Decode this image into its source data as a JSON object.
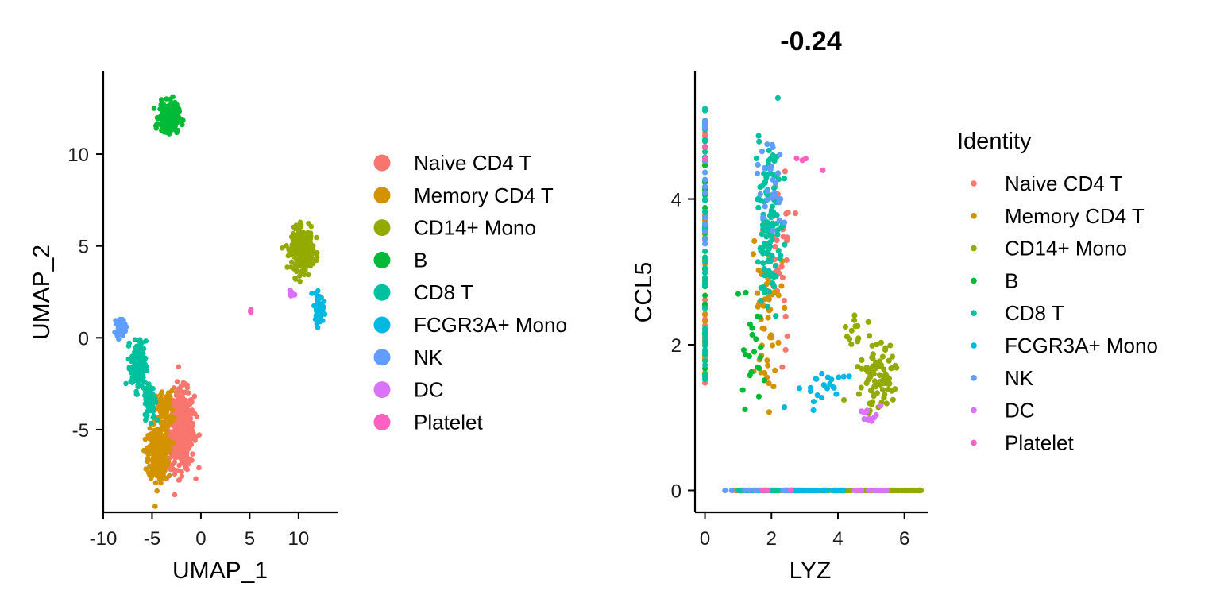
{
  "chart_data": [
    {
      "type": "scatter",
      "title": "",
      "xlabel": "UMAP_1",
      "ylabel": "UMAP_2",
      "xlim": [
        -10,
        14
      ],
      "ylim": [
        -9.5,
        14.5
      ],
      "x_ticks": [
        -10,
        -5,
        0,
        5,
        10
      ],
      "y_ticks": [
        -5,
        0,
        5,
        10
      ],
      "x_tick_labels": [
        "-10",
        "-5",
        "0",
        "5",
        "10"
      ],
      "y_tick_labels": [
        "-5",
        "0",
        "5",
        "10"
      ],
      "grid": false,
      "legend_position": "right",
      "clusters": [
        {
          "name": "Naive CD4 T",
          "center": [
            -2.0,
            -5.0
          ],
          "spread": [
            1.2,
            1.9
          ],
          "n": 520
        },
        {
          "name": "Memory CD4 T",
          "center": [
            -4.4,
            -6.3
          ],
          "spread": [
            0.9,
            1.3
          ],
          "n": 340
        },
        {
          "name": "Memory CD4 T",
          "center": [
            -3.7,
            -3.9
          ],
          "spread": [
            0.8,
            0.9
          ],
          "n": 90
        },
        {
          "name": "CD14+ Mono",
          "center": [
            10.4,
            4.8
          ],
          "spread": [
            1.0,
            1.0
          ],
          "n": 340
        },
        {
          "name": "B",
          "center": [
            -3.3,
            12.0
          ],
          "spread": [
            0.9,
            0.7
          ],
          "n": 260
        },
        {
          "name": "CD8 T",
          "center": [
            -6.4,
            -1.5
          ],
          "spread": [
            0.7,
            1.2
          ],
          "n": 160
        },
        {
          "name": "CD8 T",
          "center": [
            -5.2,
            -3.4
          ],
          "spread": [
            0.5,
            0.9
          ],
          "n": 90
        },
        {
          "name": "FCGR3A+ Mono",
          "center": [
            12.1,
            1.6
          ],
          "spread": [
            0.4,
            0.7
          ],
          "n": 110
        },
        {
          "name": "NK",
          "center": [
            -8.2,
            0.6
          ],
          "spread": [
            0.4,
            0.4
          ],
          "n": 90
        },
        {
          "name": "DC",
          "center": [
            9.4,
            2.4
          ],
          "spread": [
            0.3,
            0.25
          ],
          "n": 12
        },
        {
          "name": "Platelet",
          "center": [
            5.1,
            1.45
          ],
          "spread": [
            0.05,
            0.07
          ],
          "n": 6
        }
      ]
    },
    {
      "type": "scatter",
      "title": "-0.24",
      "xlabel": "LYZ",
      "ylabel": "CCL5",
      "xlim": [
        -0.3,
        6.7
      ],
      "ylim": [
        -0.3,
        5.75
      ],
      "x_ticks": [
        0,
        2,
        4,
        6
      ],
      "y_ticks": [
        0,
        2,
        4
      ],
      "x_tick_labels": [
        "0",
        "2",
        "4",
        "6"
      ],
      "y_tick_labels": [
        "0",
        "2",
        "4"
      ],
      "grid": false,
      "legend_position": "right",
      "legend_title": "Identity",
      "groups": [
        {
          "name": "Naive CD4 T",
          "columns": [
            {
              "x": 0,
              "y_range": [
                1.3,
                5.3
              ],
              "n": 18
            }
          ],
          "blobs": [
            {
              "center": [
                2.2,
                3.2
              ],
              "spread": [
                0.35,
                1.0
              ],
              "n": 40
            }
          ],
          "zero_row": [
            0.8,
            3.0,
            45
          ]
        },
        {
          "name": "Memory CD4 T",
          "columns": [
            {
              "x": 0,
              "y_range": [
                1.2,
                5.0
              ],
              "n": 30
            }
          ],
          "blobs": [
            {
              "center": [
                1.9,
                2.6
              ],
              "spread": [
                0.4,
                0.9
              ],
              "n": 55
            }
          ],
          "zero_row": [
            0.8,
            3.0,
            45
          ]
        },
        {
          "name": "CD14+ Mono",
          "columns": [],
          "blobs": [
            {
              "center": [
                5.2,
                1.6
              ],
              "spread": [
                0.5,
                0.35
              ],
              "n": 85
            },
            {
              "center": [
                4.5,
                2.2
              ],
              "spread": [
                0.3,
                0.3
              ],
              "n": 12
            }
          ],
          "zero_row": [
            3.5,
            6.5,
            140
          ]
        },
        {
          "name": "B",
          "columns": [
            {
              "x": 0,
              "y_range": [
                1.5,
                4.5
              ],
              "n": 20
            }
          ],
          "blobs": [
            {
              "center": [
                1.5,
                2.0
              ],
              "spread": [
                0.4,
                0.6
              ],
              "n": 22
            }
          ],
          "zero_row": [
            1.0,
            3.0,
            30
          ]
        },
        {
          "name": "CD8 T",
          "columns": [
            {
              "x": 0,
              "y_range": [
                1.5,
                5.3
              ],
              "n": 50
            }
          ],
          "blobs": [
            {
              "center": [
                1.9,
                3.6
              ],
              "spread": [
                0.35,
                0.9
              ],
              "n": 120
            }
          ],
          "zero_row": [
            1.0,
            3.0,
            40
          ]
        },
        {
          "name": "FCGR3A+ Mono",
          "columns": [],
          "blobs": [
            {
              "center": [
                3.5,
                1.4
              ],
              "spread": [
                0.6,
                0.25
              ],
              "n": 22
            }
          ],
          "zero_row": [
            2.4,
            4.2,
            60
          ]
        },
        {
          "name": "NK",
          "columns": [
            {
              "x": 0,
              "y_range": [
                3.2,
                5.6
              ],
              "n": 14
            }
          ],
          "blobs": [
            {
              "center": [
                2.1,
                4.1
              ],
              "spread": [
                0.35,
                0.6
              ],
              "n": 28
            }
          ],
          "zero_row": [
            0.5,
            2.5,
            12
          ]
        },
        {
          "name": "DC",
          "columns": [],
          "blobs": [
            {
              "center": [
                5.0,
                1.0
              ],
              "spread": [
                0.3,
                0.12
              ],
              "n": 12
            }
          ],
          "zero_row": [
            4.5,
            5.5,
            15
          ]
        },
        {
          "name": "Platelet",
          "columns": [
            {
              "x": 0,
              "y_range": [
                4.5,
                5.1
              ],
              "n": 2
            }
          ],
          "blobs": [
            {
              "center": [
                2.8,
                4.5
              ],
              "spread": [
                0.6,
                0.2
              ],
              "n": 4
            }
          ],
          "zero_row": [
            1.5,
            3.0,
            4
          ]
        }
      ]
    }
  ],
  "legend": {
    "identity_title": "Identity",
    "items": [
      {
        "label": "Naive CD4 T",
        "color": "#F8766D"
      },
      {
        "label": "Memory CD4 T",
        "color": "#D39200"
      },
      {
        "label": "CD14+ Mono",
        "color": "#93AA00"
      },
      {
        "label": "B",
        "color": "#00BA38"
      },
      {
        "label": "CD8 T",
        "color": "#00C19F"
      },
      {
        "label": "FCGR3A+ Mono",
        "color": "#00B9E3"
      },
      {
        "label": "NK",
        "color": "#619CFF"
      },
      {
        "label": "DC",
        "color": "#DB72FB"
      },
      {
        "label": "Platelet",
        "color": "#FF61C3"
      }
    ]
  }
}
